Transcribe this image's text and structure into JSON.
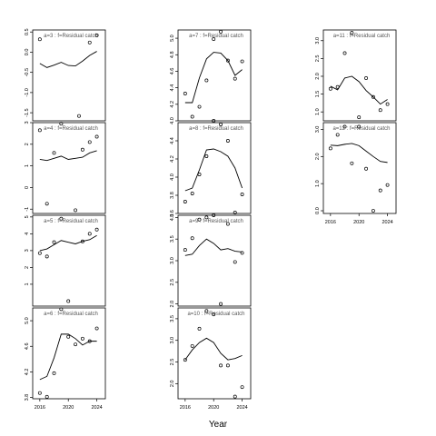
{
  "chart_data": {
    "type": "line",
    "xlabel": "Year",
    "x_ticks": [
      2016,
      2020,
      2024
    ],
    "panels": [
      {
        "label": "a=3  :  f=Residual catch",
        "xlim": [
          2015,
          2025.2
        ],
        "ylim": [
          -1.7,
          0.55
        ],
        "yticks": [
          "0.5",
          "0.0",
          "-0.5",
          "-1.0",
          "-1.5"
        ],
        "ytickvals": [
          0.5,
          0.0,
          -0.5,
          -1.0,
          -1.5
        ],
        "line_x": [
          2016,
          2017,
          2018,
          2019,
          2020,
          2021,
          2022,
          2023,
          2024
        ],
        "line_y": [
          -0.28,
          -0.38,
          -0.32,
          -0.25,
          -0.33,
          -0.34,
          -0.22,
          -0.08,
          0.02
        ],
        "pts_x": [
          2016,
          2023,
          2024,
          2021.5
        ],
        "pts_y": [
          0.32,
          0.24,
          0.42,
          -1.58
        ]
      },
      {
        "label": "a=4  :  f=Residual catch",
        "xlim": [
          2015,
          2025.2
        ],
        "ylim": [
          -1.2,
          3.0
        ],
        "yticks": [
          "3",
          "2",
          "1",
          "0",
          "-1"
        ],
        "ytickvals": [
          3,
          2,
          1,
          0,
          -1
        ],
        "line_x": [
          2016,
          2017,
          2018,
          2019,
          2020,
          2021,
          2022,
          2023,
          2024
        ],
        "line_y": [
          1.3,
          1.25,
          1.35,
          1.45,
          1.3,
          1.35,
          1.4,
          1.6,
          1.7
        ],
        "pts_x": [
          2016,
          2017,
          2018,
          2019,
          2021,
          2022,
          2023,
          2024
        ],
        "pts_y": [
          2.65,
          -0.75,
          1.6,
          2.95,
          -1.05,
          1.75,
          2.1,
          2.35
        ]
      },
      {
        "label": "a=5  :  f=Residual catch",
        "xlim": [
          2015,
          2025.2
        ],
        "ylim": [
          -0.3,
          5.1
        ],
        "yticks": [
          "5",
          "4",
          "3",
          "2",
          "1"
        ],
        "ytickvals": [
          5,
          4,
          3,
          2,
          1
        ],
        "line_x": [
          2016,
          2017,
          2018,
          2019,
          2020,
          2021,
          2022,
          2023,
          2024
        ],
        "line_y": [
          3.0,
          3.1,
          3.35,
          3.6,
          3.5,
          3.4,
          3.55,
          3.65,
          3.9
        ],
        "pts_x": [
          2016,
          2017,
          2018,
          2019,
          2020,
          2022,
          2023,
          2024
        ],
        "pts_y": [
          2.85,
          2.65,
          3.5,
          4.9,
          0.0,
          3.55,
          4.0,
          4.25
        ]
      },
      {
        "label": "a=6  :  f=Residual catch",
        "xlim": [
          2015,
          2025.2
        ],
        "ylim": [
          3.78,
          5.2
        ],
        "yticks": [
          "5.0",
          "4.6",
          "4.2",
          "3.8"
        ],
        "ytickvals": [
          5.0,
          4.6,
          4.2,
          3.8
        ],
        "line_x": [
          2016,
          2017,
          2018,
          2019,
          2020,
          2021,
          2022,
          2023,
          2024
        ],
        "line_y": [
          4.08,
          4.13,
          4.42,
          4.79,
          4.79,
          4.72,
          4.62,
          4.68,
          4.68
        ],
        "pts_x": [
          2016,
          2017,
          2018,
          2019,
          2020,
          2021,
          2022,
          2023,
          2024
        ],
        "pts_y": [
          3.87,
          3.81,
          4.18,
          5.18,
          4.75,
          4.63,
          4.72,
          4.68,
          4.88
        ]
      },
      {
        "label": "a=7  :  f=Residual catch",
        "xlim": [
          2015,
          2025.2
        ],
        "ylim": [
          4.0,
          5.1
        ],
        "yticks": [
          "5.0",
          "4.8",
          "4.6",
          "4.4",
          "4.2",
          "4.0"
        ],
        "ytickvals": [
          5.0,
          4.8,
          4.6,
          4.4,
          4.2,
          4.0
        ],
        "line_x": [
          2016,
          2017,
          2018,
          2019,
          2020,
          2021,
          2022,
          2023,
          2024
        ],
        "line_y": [
          4.22,
          4.22,
          4.52,
          4.75,
          4.83,
          4.82,
          4.73,
          4.55,
          4.62
        ],
        "pts_x": [
          2016,
          2017,
          2018,
          2019,
          2020,
          2021,
          2022,
          2023,
          2024
        ],
        "pts_y": [
          4.33,
          4.05,
          4.17,
          4.49,
          4.99,
          5.08,
          4.73,
          4.51,
          4.72
        ]
      },
      {
        "label": "a=8  :  f=Residual catch",
        "xlim": [
          2015,
          2025.2
        ],
        "ylim": [
          3.6,
          4.6
        ],
        "yticks": [
          "4.4",
          "4.2",
          "4.0",
          "3.8",
          "3.6"
        ],
        "ytickvals": [
          4.4,
          4.2,
          4.0,
          3.8,
          3.6
        ],
        "line_x": [
          2016,
          2017,
          2018,
          2019,
          2020,
          2021,
          2022,
          2023,
          2024
        ],
        "line_y": [
          3.85,
          3.88,
          4.08,
          4.3,
          4.31,
          4.28,
          4.23,
          4.1,
          3.88
        ],
        "pts_x": [
          2016,
          2017,
          2018,
          2019,
          2020,
          2021,
          2022,
          2023,
          2024
        ],
        "pts_y": [
          3.73,
          3.82,
          4.03,
          4.23,
          4.62,
          4.58,
          4.4,
          3.61,
          3.81
        ]
      },
      {
        "label": "a=9  :  f=Residual catch",
        "xlim": [
          2015,
          2025.2
        ],
        "ylim": [
          1.95,
          4.05
        ],
        "yticks": [
          "4.0",
          "3.5",
          "3.0",
          "2.5",
          "2.0"
        ],
        "ytickvals": [
          4.0,
          3.5,
          3.0,
          2.5,
          2.0
        ],
        "line_x": [
          2016,
          2017,
          2018,
          2019,
          2020,
          2021,
          2022,
          2023,
          2024
        ],
        "line_y": [
          3.12,
          3.15,
          3.35,
          3.5,
          3.4,
          3.25,
          3.28,
          3.22,
          3.2
        ],
        "pts_x": [
          2016,
          2017,
          2018,
          2019,
          2020,
          2021,
          2022,
          2023,
          2024
        ],
        "pts_y": [
          3.25,
          3.52,
          3.95,
          4.0,
          4.05,
          2.0,
          3.85,
          2.97,
          3.18
        ]
      },
      {
        "label": "a=10  :  f=Residual catch",
        "xlim": [
          2015,
          2025.2
        ],
        "ylim": [
          1.65,
          3.75
        ],
        "yticks": [
          "3.5",
          "3.0",
          "2.5",
          "2.0"
        ],
        "ytickvals": [
          3.5,
          3.0,
          2.5,
          2.0
        ],
        "line_x": [
          2016,
          2017,
          2018,
          2019,
          2020,
          2021,
          2022,
          2023,
          2024
        ],
        "line_y": [
          2.55,
          2.78,
          2.95,
          3.05,
          2.95,
          2.7,
          2.55,
          2.58,
          2.65
        ],
        "pts_x": [
          2016,
          2017,
          2018,
          2019,
          2020,
          2021,
          2022,
          2023,
          2024
        ],
        "pts_y": [
          2.55,
          2.87,
          3.27,
          3.68,
          3.6,
          2.42,
          2.42,
          1.7,
          1.92
        ]
      },
      {
        "label": "a=11  :  f=Residual catch",
        "xlim": [
          2015,
          2025.2
        ],
        "ylim": [
          0.75,
          3.3
        ],
        "yticks": [
          "3.0",
          "2.5",
          "2.0",
          "1.5",
          "1.0"
        ],
        "ytickvals": [
          3.0,
          2.5,
          2.0,
          1.5,
          1.0
        ],
        "line_x": [
          2016,
          2017,
          2018,
          2019,
          2020,
          2021,
          2022,
          2023,
          2024
        ],
        "line_y": [
          1.72,
          1.62,
          1.95,
          2.0,
          1.85,
          1.6,
          1.42,
          1.22,
          1.35
        ],
        "pts_x": [
          2016,
          2017,
          2018,
          2019,
          2020,
          2021,
          2022,
          2023,
          2024
        ],
        "pts_y": [
          1.65,
          1.7,
          2.65,
          3.22,
          0.85,
          1.95,
          1.42,
          1.05,
          1.22
        ]
      },
      {
        "label": "a=12  :  f=Residual catch",
        "xlim": [
          2015,
          2025.2
        ],
        "ylim": [
          -0.1,
          3.25
        ],
        "yticks": [
          "3.0",
          "2.0",
          "1.0",
          "0.0"
        ],
        "ytickvals": [
          3.0,
          2.0,
          1.0,
          0.0
        ],
        "line_x": [
          2016,
          2017,
          2018,
          2019,
          2020,
          2021,
          2022,
          2023,
          2024
        ],
        "line_y": [
          2.42,
          2.4,
          2.45,
          2.48,
          2.4,
          2.2,
          2.0,
          1.82,
          1.78
        ],
        "pts_x": [
          2016,
          2017,
          2018,
          2019,
          2020,
          2021,
          2022,
          2023,
          2024
        ],
        "pts_y": [
          2.3,
          2.8,
          3.1,
          1.75,
          3.1,
          1.55,
          0.0,
          0.75,
          0.95
        ]
      }
    ]
  }
}
